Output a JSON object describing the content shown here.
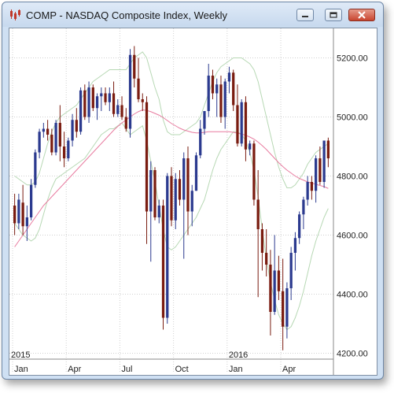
{
  "window": {
    "title": "COMP - NASDAQ Composite Index, Weekly"
  },
  "icons": {
    "app": "candlestick-chart-icon",
    "minimize": "minimize-icon",
    "maximize": "maximize-icon",
    "close": "close-icon"
  },
  "colors": {
    "up_candle": "#2b3a8f",
    "down_candle": "#7a1c10",
    "ma_slow": "#e87ca0",
    "band": "#b7d8b4",
    "grid": "#d0d0d0"
  },
  "chart_data": {
    "type": "candlestick",
    "title": "",
    "ylim": [
      4180,
      5300
    ],
    "y_ticks": [
      "4200.00",
      "4400.00",
      "4600.00",
      "4800.00",
      "5000.00",
      "5200.00"
    ],
    "year_labels": [
      "2015",
      "2016"
    ],
    "month_labels": [
      "Jan",
      "Apr",
      "Jul",
      "Oct",
      "Jan",
      "Apr"
    ],
    "grid": true,
    "candles": [
      [
        4700,
        4740,
        4600,
        4640
      ],
      [
        4640,
        4740,
        4620,
        4720
      ],
      [
        4710,
        4770,
        4600,
        4630
      ],
      [
        4630,
        4700,
        4580,
        4660
      ],
      [
        4660,
        4790,
        4650,
        4770
      ],
      [
        4770,
        4890,
        4760,
        4880
      ],
      [
        4880,
        4960,
        4860,
        4950
      ],
      [
        4950,
        4980,
        4930,
        4960
      ],
      [
        4960,
        4990,
        4920,
        4940
      ],
      [
        4940,
        4960,
        4870,
        4880
      ],
      [
        4880,
        4990,
        4870,
        4980
      ],
      [
        4980,
        5040,
        4850,
        4900
      ],
      [
        4900,
        4950,
        4830,
        4860
      ],
      [
        4860,
        4930,
        4850,
        4920
      ],
      [
        4920,
        5010,
        4900,
        4990
      ],
      [
        4990,
        5030,
        4930,
        4950
      ],
      [
        4950,
        5100,
        4940,
        5090
      ],
      [
        5090,
        5110,
        4990,
        5000
      ],
      [
        5000,
        5120,
        4980,
        5100
      ],
      [
        5100,
        5110,
        5020,
        5030
      ],
      [
        5030,
        5080,
        4990,
        5070
      ],
      [
        5070,
        5100,
        5020,
        5080
      ],
      [
        5080,
        5100,
        5040,
        5050
      ],
      [
        5050,
        5100,
        5020,
        5080
      ],
      [
        5080,
        5120,
        5000,
        5010
      ],
      [
        5010,
        5060,
        5000,
        5040
      ],
      [
        5040,
        5070,
        4990,
        5000
      ],
      [
        5000,
        5030,
        4950,
        4960
      ],
      [
        4960,
        5230,
        4930,
        5210
      ],
      [
        5210,
        5240,
        5100,
        5130
      ],
      [
        5130,
        5200,
        5050,
        5060
      ],
      [
        5060,
        5080,
        5020,
        5050
      ],
      [
        5050,
        5070,
        4570,
        4680
      ],
      [
        4680,
        4850,
        4510,
        4820
      ],
      [
        4820,
        4830,
        4650,
        4660
      ],
      [
        4660,
        4720,
        4640,
        4700
      ],
      [
        4700,
        4720,
        4280,
        4320
      ],
      [
        4320,
        4810,
        4300,
        4800
      ],
      [
        4800,
        4830,
        4630,
        4650
      ],
      [
        4650,
        4810,
        4620,
        4790
      ],
      [
        4790,
        4820,
        4700,
        4720
      ],
      [
        4720,
        4880,
        4520,
        4860
      ],
      [
        4860,
        4900,
        4600,
        4680
      ],
      [
        4680,
        4770,
        4630,
        4750
      ],
      [
        4750,
        4880,
        4750,
        4870
      ],
      [
        4870,
        4990,
        4860,
        4960
      ],
      [
        4960,
        5020,
        4940,
        5020
      ],
      [
        5020,
        5180,
        5000,
        5140
      ],
      [
        5140,
        5160,
        5060,
        5080
      ],
      [
        5080,
        5130,
        5000,
        5110
      ],
      [
        5110,
        5140,
        4980,
        5000
      ],
      [
        5000,
        5130,
        4960,
        5120
      ],
      [
        5120,
        5170,
        5080,
        5150
      ],
      [
        5150,
        5160,
        5020,
        5040
      ],
      [
        5040,
        5110,
        4900,
        4910
      ],
      [
        4910,
        5060,
        4900,
        5050
      ],
      [
        5050,
        5070,
        4850,
        4890
      ],
      [
        4890,
        4920,
        4870,
        4910
      ],
      [
        4910,
        4920,
        4700,
        4720
      ],
      [
        4720,
        4820,
        4390,
        4620
      ],
      [
        4620,
        4640,
        4480,
        4540
      ],
      [
        4540,
        4620,
        4460,
        4500
      ],
      [
        4500,
        4550,
        4260,
        4340
      ],
      [
        4340,
        4600,
        4330,
        4480
      ],
      [
        4480,
        4530,
        4380,
        4410
      ],
      [
        4410,
        4520,
        4210,
        4290
      ],
      [
        4290,
        4440,
        4250,
        4420
      ],
      [
        4420,
        4560,
        4380,
        4540
      ],
      [
        4540,
        4610,
        4480,
        4590
      ],
      [
        4590,
        4680,
        4570,
        4670
      ],
      [
        4670,
        4730,
        4620,
        4720
      ],
      [
        4720,
        4800,
        4700,
        4780
      ],
      [
        4780,
        4800,
        4720,
        4750
      ],
      [
        4750,
        4870,
        4710,
        4860
      ],
      [
        4860,
        4900,
        4770,
        4780
      ],
      [
        4780,
        4920,
        4760,
        4920
      ],
      [
        4920,
        4930,
        4830,
        4860
      ]
    ],
    "ma_fast": [
      4720,
      4700,
      4680,
      4665,
      4660,
      4680,
      4720,
      4770,
      4820,
      4850,
      4870,
      4880,
      4890,
      4900,
      4910,
      4920,
      4935,
      4950,
      4970,
      4990,
      5010,
      5030,
      5045,
      5055,
      5060,
      5065,
      5070,
      5060,
      5060,
      5080,
      5090,
      5100,
      5060,
      5000,
      4940,
      4870,
      4780,
      4720,
      4690,
      4680,
      4690,
      4700,
      4720,
      4730,
      4750,
      4790,
      4830,
      4880,
      4930,
      4980,
      5020,
      5050,
      5080,
      5100,
      5100,
      5080,
      5060,
      5030,
      4990,
      4920,
      4830,
      4740,
      4650,
      4580,
      4520,
      4480,
      4450,
      4440,
      4460,
      4490,
      4540,
      4600,
      4650,
      4700,
      4740,
      4780,
      4800
    ],
    "ma_slow": [
      4560,
      4580,
      4600,
      4620,
      4640,
      4660,
      4680,
      4700,
      4715,
      4730,
      4745,
      4760,
      4775,
      4790,
      4805,
      4820,
      4835,
      4850,
      4865,
      4880,
      4895,
      4910,
      4925,
      4940,
      4955,
      4968,
      4980,
      4990,
      5000,
      5010,
      5018,
      5024,
      5022,
      5018,
      5012,
      5006,
      4998,
      4988,
      4978,
      4970,
      4962,
      4956,
      4952,
      4948,
      4946,
      4946,
      4948,
      4950,
      4950,
      4950,
      4950,
      4950,
      4950,
      4948,
      4945,
      4942,
      4938,
      4932,
      4925,
      4915,
      4903,
      4890,
      4875,
      4860,
      4845,
      4832,
      4820,
      4810,
      4800,
      4792,
      4786,
      4780,
      4776,
      4772,
      4768,
      4764,
      4758
    ],
    "band_upper": [
      4800,
      4790,
      4780,
      4770,
      4770,
      4780,
      4810,
      4860,
      4910,
      4950,
      4980,
      5000,
      5010,
      5020,
      5030,
      5040,
      5060,
      5080,
      5100,
      5120,
      5130,
      5140,
      5150,
      5160,
      5160,
      5160,
      5160,
      5160,
      5180,
      5200,
      5210,
      5220,
      5200,
      5150,
      5100,
      5060,
      4990,
      4950,
      4940,
      4940,
      4940,
      4950,
      4960,
      4970,
      4980,
      5000,
      5040,
      5080,
      5120,
      5150,
      5170,
      5180,
      5190,
      5200,
      5200,
      5200,
      5190,
      5180,
      5160,
      5120,
      5060,
      5000,
      4940,
      4880,
      4830,
      4790,
      4760,
      4760,
      4770,
      4790,
      4810,
      4840,
      4860,
      4880,
      4890,
      4900,
      4910
    ],
    "band_lower": [
      4640,
      4620,
      4600,
      4590,
      4580,
      4590,
      4620,
      4670,
      4720,
      4760,
      4790,
      4800,
      4810,
      4820,
      4830,
      4840,
      4850,
      4860,
      4880,
      4900,
      4920,
      4940,
      4950,
      4960,
      4960,
      4970,
      4980,
      4960,
      4940,
      4950,
      4960,
      4970,
      4920,
      4850,
      4780,
      4700,
      4620,
      4560,
      4550,
      4560,
      4580,
      4600,
      4620,
      4640,
      4660,
      4690,
      4720,
      4770,
      4820,
      4860,
      4890,
      4910,
      4930,
      4950,
      4950,
      4940,
      4920,
      4880,
      4820,
      4730,
      4620,
      4520,
      4440,
      4380,
      4330,
      4300,
      4280,
      4290,
      4320,
      4360,
      4410,
      4470,
      4530,
      4580,
      4620,
      4660,
      4690
    ]
  }
}
